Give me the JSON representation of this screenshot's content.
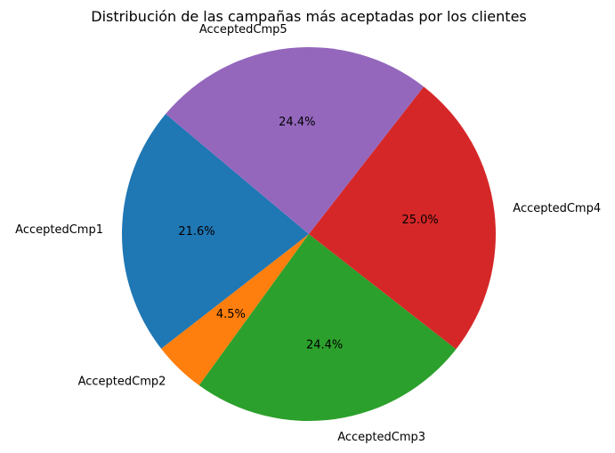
{
  "chart_data": {
    "type": "pie",
    "title": "Distribución de las campañas más aceptadas por los clientes",
    "categories": [
      "AcceptedCmp1",
      "AcceptedCmp2",
      "AcceptedCmp3",
      "AcceptedCmp4",
      "AcceptedCmp5"
    ],
    "values": [
      21.6,
      4.5,
      24.4,
      25.0,
      24.4
    ],
    "value_labels": [
      "21.6%",
      "4.5%",
      "24.4%",
      "25.0%",
      "24.4%"
    ],
    "colors": [
      "#1f77b4",
      "#ff7f0e",
      "#2ca02c",
      "#d62728",
      "#9467bd"
    ],
    "start_angle_deg": 140,
    "direction": "counterclockwise"
  }
}
